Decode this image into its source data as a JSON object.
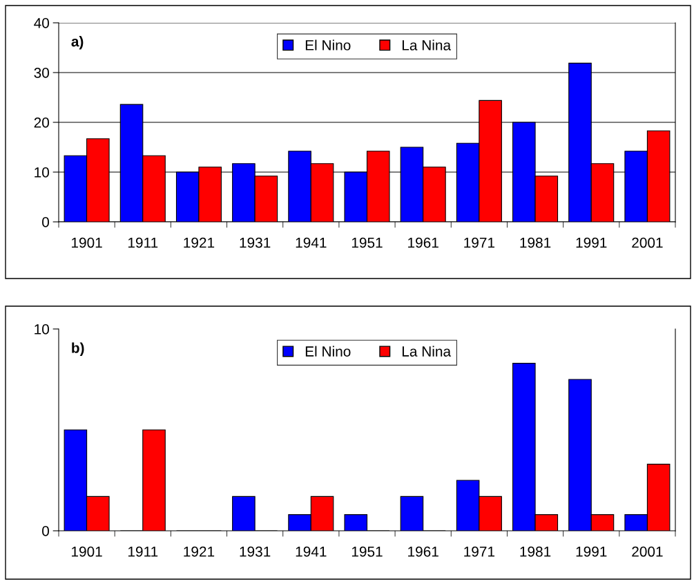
{
  "chart_data": [
    {
      "type": "bar",
      "categories": [
        "1901",
        "1911",
        "1921",
        "1931",
        "1941",
        "1951",
        "1961",
        "1971",
        "1981",
        "1991",
        "2001"
      ],
      "series": [
        {
          "name": "El Nino",
          "color": "#0000ff",
          "values": [
            13.3,
            23.6,
            10,
            11.7,
            14.2,
            10,
            15,
            15.8,
            20,
            31.9,
            14.2
          ]
        },
        {
          "name": "La Nina",
          "color": "#ff0000",
          "values": [
            16.7,
            13.3,
            11,
            9.2,
            11.7,
            14.2,
            11,
            24.4,
            9.2,
            11.7,
            18.3
          ]
        }
      ],
      "ylim": [
        0,
        40
      ],
      "yticks": [
        0,
        10,
        20,
        30,
        40
      ],
      "grid": "y",
      "legend": "top",
      "annotations": [
        "a)"
      ]
    },
    {
      "type": "bar",
      "categories": [
        "1901",
        "1911",
        "1921",
        "1931",
        "1941",
        "1951",
        "1961",
        "1971",
        "1981",
        "1991",
        "2001"
      ],
      "series": [
        {
          "name": "El Nino",
          "color": "#0000ff",
          "values": [
            5.0,
            0,
            0,
            1.7,
            0.8,
            0.8,
            1.7,
            2.5,
            8.3,
            7.5,
            0.8
          ]
        },
        {
          "name": "La Nina",
          "color": "#ff0000",
          "values": [
            1.7,
            5.0,
            0,
            0,
            1.7,
            0,
            0,
            1.7,
            0.8,
            0.8,
            3.3
          ]
        }
      ],
      "ylim": [
        0,
        10
      ],
      "yticks": [
        0,
        10
      ],
      "legend": "top",
      "annotations": [
        "b)"
      ]
    }
  ]
}
